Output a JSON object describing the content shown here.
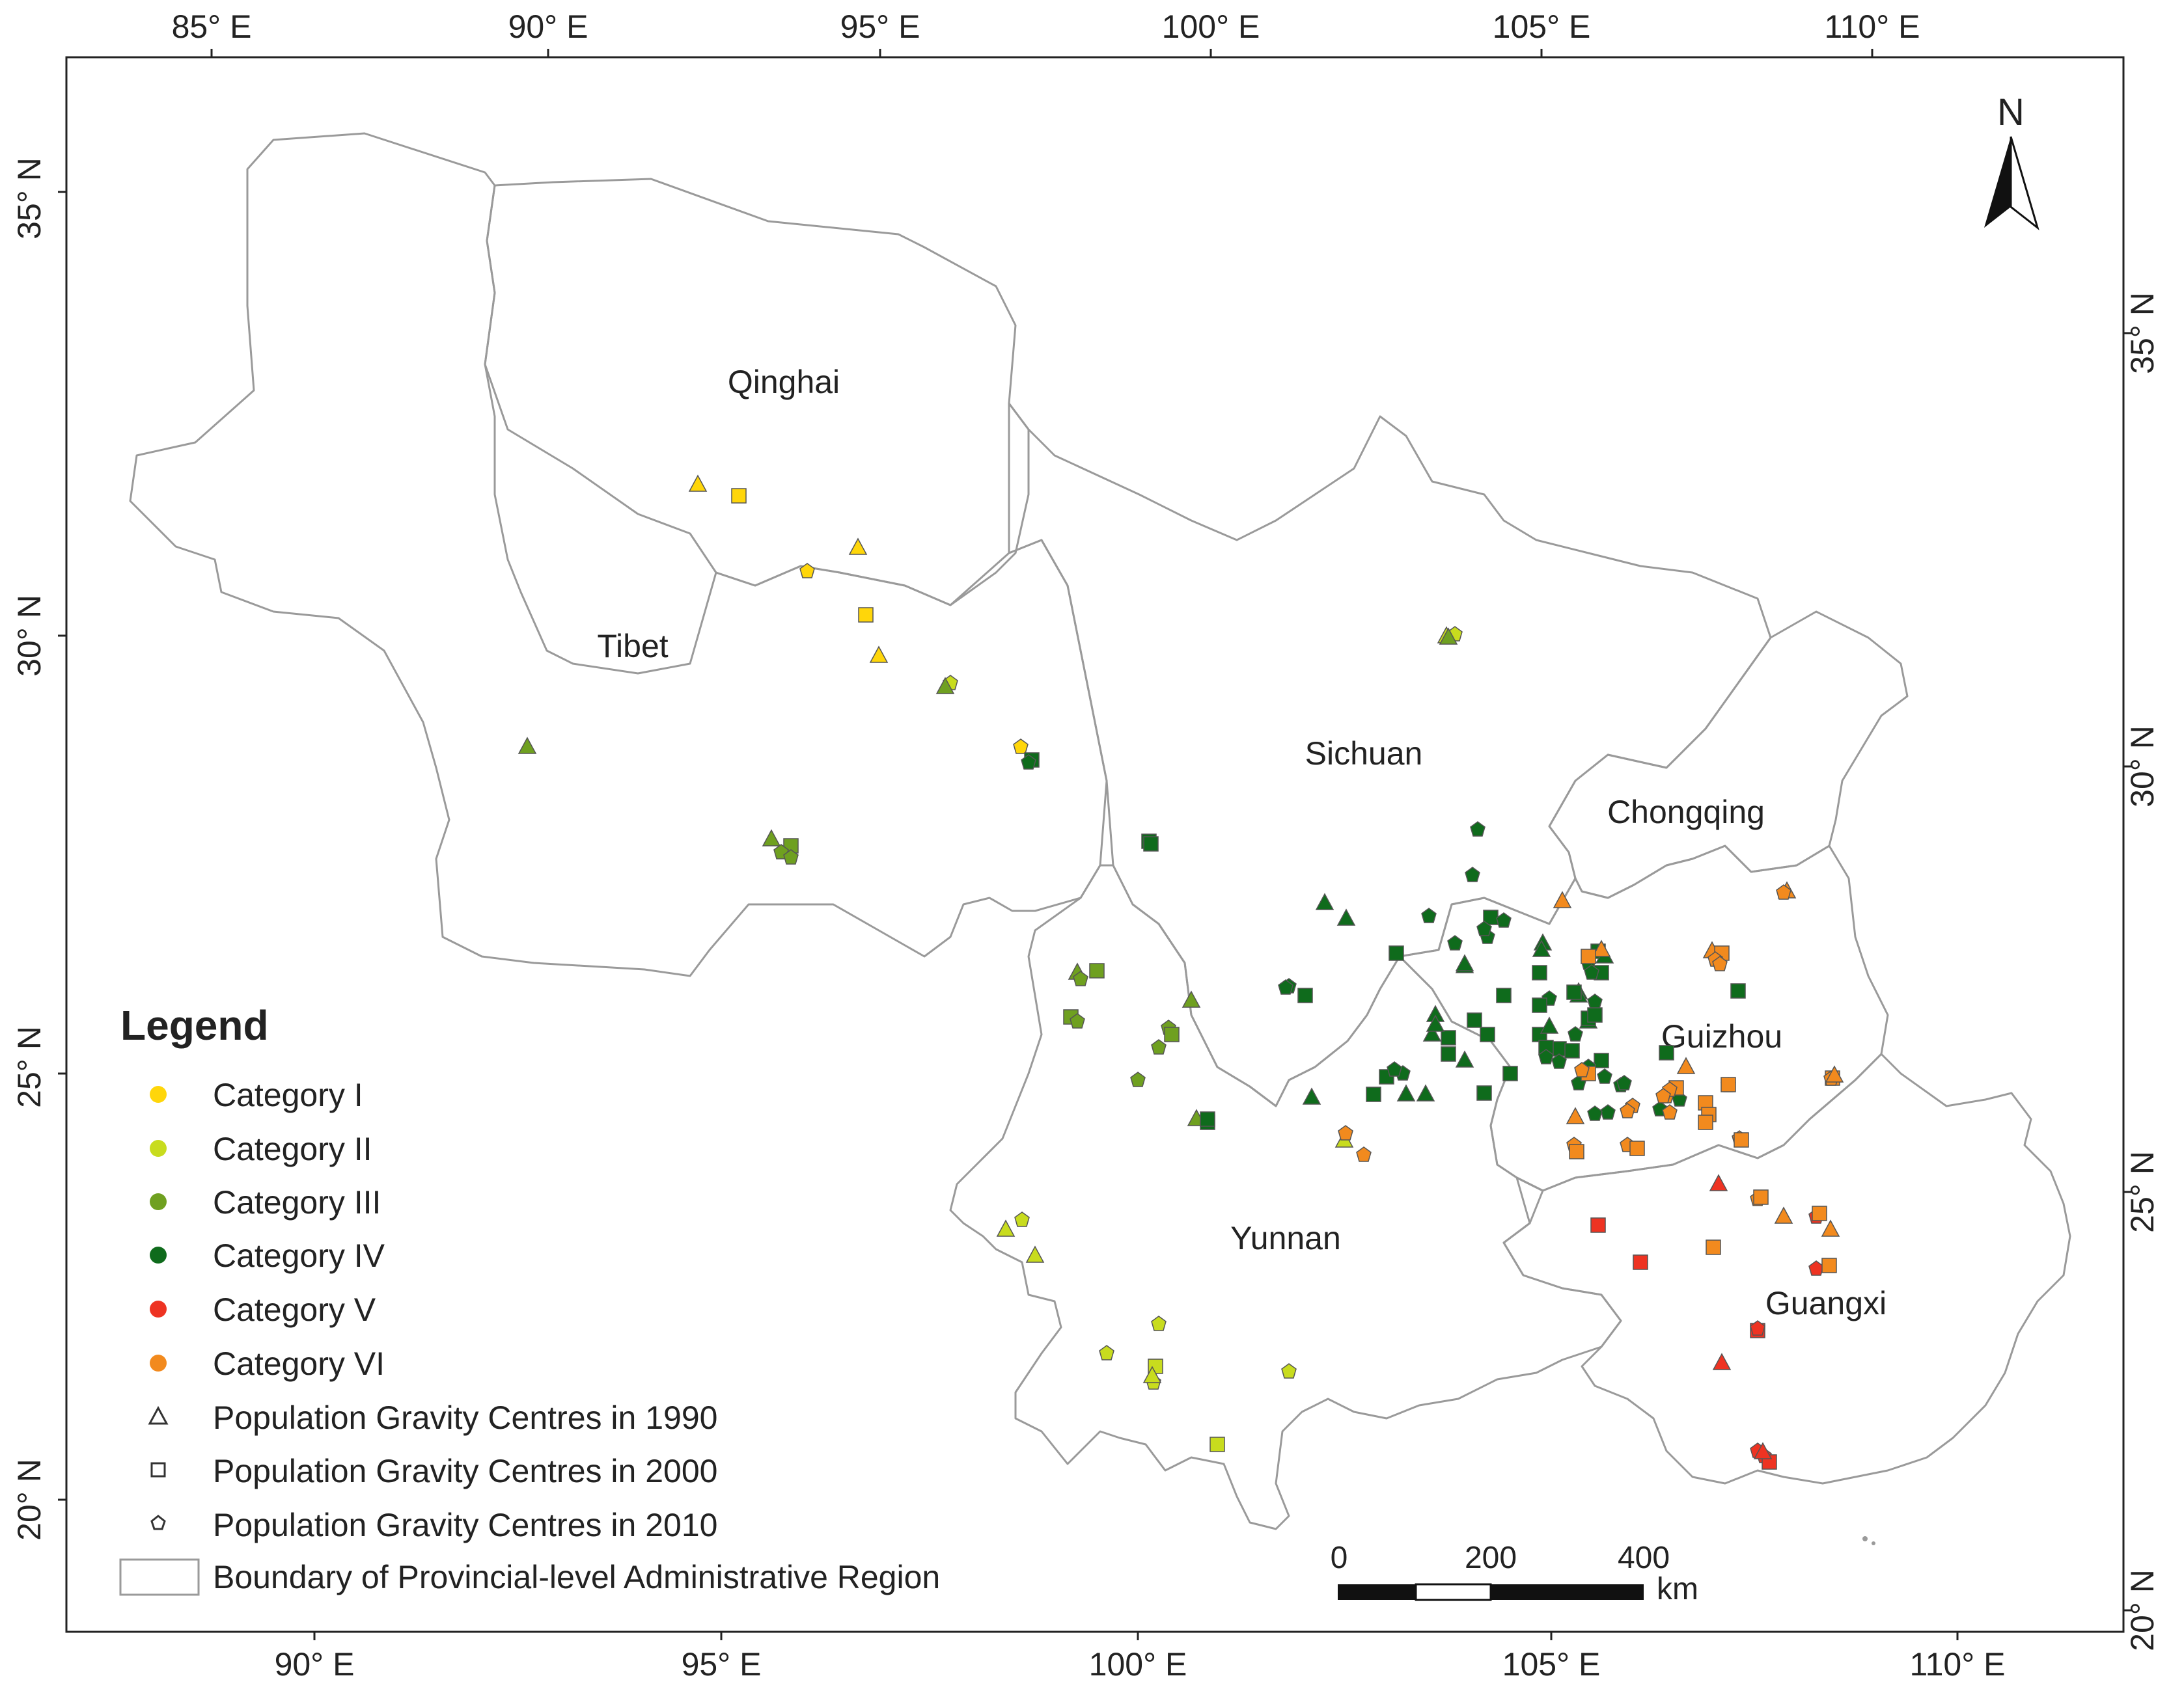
{
  "map": {
    "top_axis_labels": [
      "85° E",
      "90° E",
      "95° E",
      "100° E",
      "105° E",
      "110° E"
    ],
    "bottom_axis_labels": [
      "90° E",
      "95° E",
      "100° E",
      "105° E",
      "110° E"
    ],
    "left_axis_labels": [
      "35° N",
      "30° N",
      "25° N",
      "20° N"
    ],
    "right_axis_labels": [
      "35° N",
      "30° N",
      "25° N",
      "20° N"
    ],
    "north_label": "N",
    "scale_ticks": [
      "0",
      "200",
      "400"
    ],
    "scale_unit": "km",
    "provinces": [
      "Qinghai",
      "Tibet",
      "Sichuan",
      "Chongqing",
      "Guizhou",
      "Yunnan",
      "Guangxi"
    ],
    "colors": {
      "cat1": "#FFD60A",
      "cat2": "#C8DC1E",
      "cat3": "#6FA020",
      "cat4": "#0F6B1C",
      "cat5": "#EE3322",
      "cat6": "#F28A1E",
      "boundary": "#9a9a9a"
    }
  },
  "legend": {
    "title": "Legend",
    "items": [
      {
        "label": "Category I",
        "symbol": "dot",
        "color": "#FFD60A"
      },
      {
        "label": "Category II",
        "symbol": "dot",
        "color": "#C8DC1E"
      },
      {
        "label": "Category III",
        "symbol": "dot",
        "color": "#6FA020"
      },
      {
        "label": "Category IV",
        "symbol": "dot",
        "color": "#0F6B1C"
      },
      {
        "label": "Category V",
        "symbol": "dot",
        "color": "#EE3322"
      },
      {
        "label": "Category VI",
        "symbol": "dot",
        "color": "#F28A1E"
      },
      {
        "label": "Population Gravity Centres in 1990",
        "symbol": "triangle-outline"
      },
      {
        "label": "Population Gravity Centres in 2000",
        "symbol": "square-outline"
      },
      {
        "label": "Population Gravity Centres in 2010",
        "symbol": "pentagon-outline"
      },
      {
        "label": "Boundary of Provincial-level Administrative Region",
        "symbol": "box-outline"
      }
    ]
  }
}
